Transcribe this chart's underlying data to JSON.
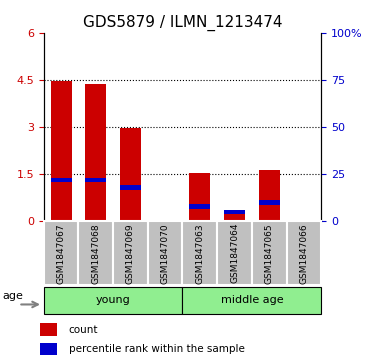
{
  "title": "GDS5879 / ILMN_1213474",
  "samples": [
    "GSM1847067",
    "GSM1847068",
    "GSM1847069",
    "GSM1847070",
    "GSM1847063",
    "GSM1847064",
    "GSM1847065",
    "GSM1847066"
  ],
  "red_values": [
    4.47,
    4.38,
    2.97,
    0.0,
    1.53,
    0.27,
    1.65,
    0.0
  ],
  "blue_pct": [
    22,
    22,
    18,
    0,
    8,
    5,
    10,
    0
  ],
  "ylim_left": [
    0,
    6
  ],
  "ylim_right": [
    0,
    100
  ],
  "yticks_left": [
    0,
    1.5,
    3,
    4.5,
    6
  ],
  "yticks_right": [
    0,
    25,
    50,
    75,
    100
  ],
  "ytick_labels_left": [
    "0",
    "1.5",
    "3",
    "4.5",
    "6"
  ],
  "ytick_labels_right": [
    "0",
    "25",
    "50",
    "75",
    "100%"
  ],
  "grid_lines": [
    1.5,
    3.0,
    4.5
  ],
  "groups": [
    {
      "label": "young",
      "start": 0,
      "end": 4,
      "color": "#90EE90"
    },
    {
      "label": "middle age",
      "start": 4,
      "end": 8,
      "color": "#90EE90"
    }
  ],
  "age_label": "age",
  "bar_width": 0.6,
  "red_color": "#CC0000",
  "blue_color": "#0000CC",
  "plot_bg_color": "#FFFFFF",
  "label_area_color": "#C0C0C0",
  "legend_red": "count",
  "legend_blue": "percentile rank within the sample",
  "title_fontsize": 11,
  "tick_fontsize": 8
}
